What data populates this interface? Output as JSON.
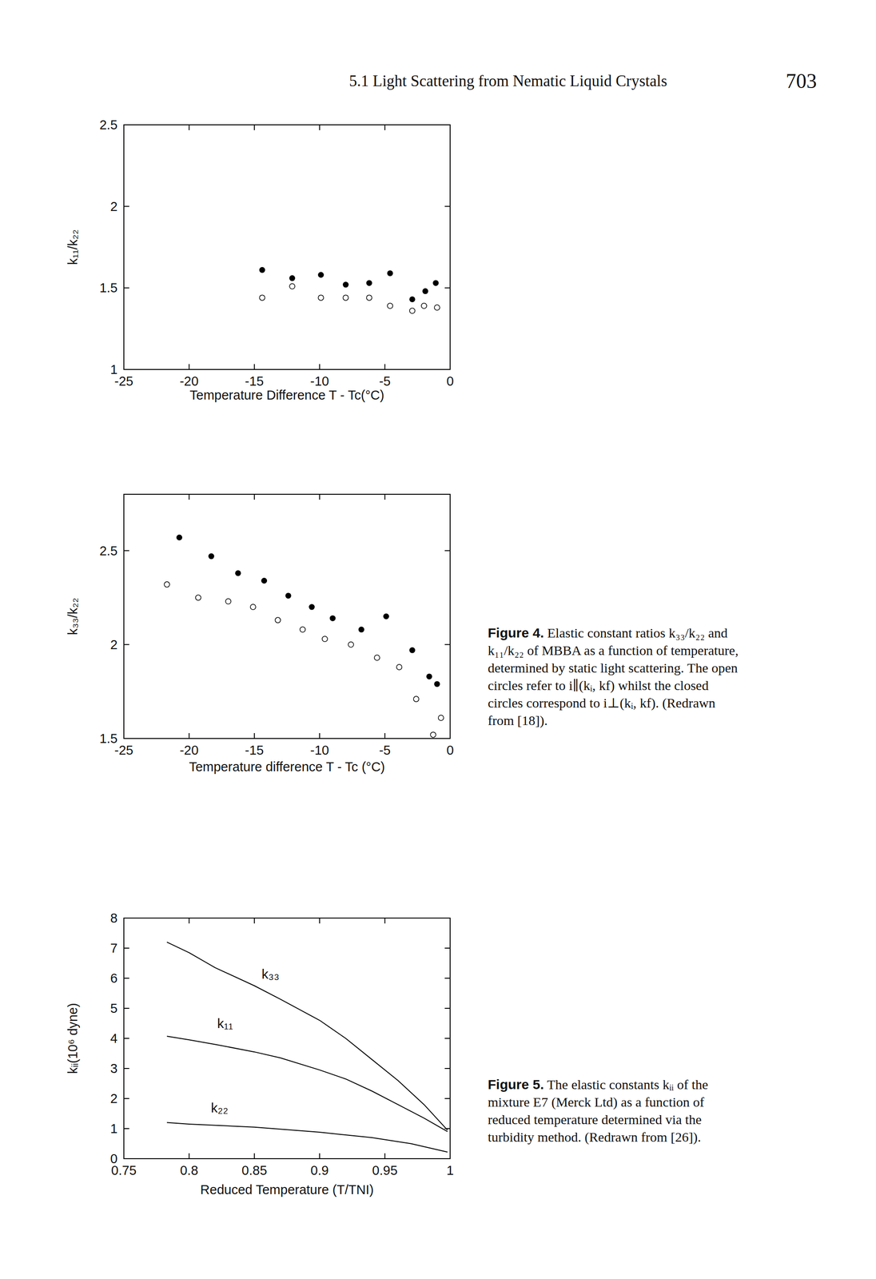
{
  "page": {
    "running_head": "5.1 Light Scattering from Nematic Liquid Crystals",
    "page_number": 703
  },
  "chart_data": [
    {
      "type": "scatter",
      "xlabel": "Temperature Difference T - Tc(°C)",
      "ylabel": "k₁₁/k₂₂",
      "xlim": [
        -25,
        0
      ],
      "ylim": [
        1,
        2.5
      ],
      "xticks": [
        -25,
        -20,
        -15,
        -10,
        -5,
        0
      ],
      "yticks": [
        1,
        1.5,
        2,
        2.5
      ],
      "series": [
        {
          "color": "#000000",
          "marker": "filled-circle",
          "x": [
            -14.4,
            -12.1,
            -9.9,
            -8.0,
            -6.2,
            -4.6,
            -2.9,
            -1.9,
            -1.1
          ],
          "values": [
            1.61,
            1.56,
            1.58,
            1.52,
            1.53,
            1.59,
            1.43,
            1.48,
            1.53
          ]
        },
        {
          "color": "#000000",
          "marker": "open-circle",
          "x": [
            -14.4,
            -12.1,
            -9.9,
            -8.0,
            -6.2,
            -4.6,
            -2.9,
            -2.0,
            -1.0
          ],
          "values": [
            1.44,
            1.51,
            1.44,
            1.44,
            1.44,
            1.39,
            1.36,
            1.39,
            1.38
          ]
        }
      ]
    },
    {
      "type": "scatter",
      "xlabel": "Temperature difference T - Tc (°C)",
      "ylabel": "k₃₃/k₂₂",
      "xlim": [
        -25,
        0
      ],
      "ylim": [
        1.5,
        2.8
      ],
      "xticks": [
        -25,
        -20,
        -15,
        -10,
        -5,
        0
      ],
      "yticks": [
        1.5,
        2,
        2.5
      ],
      "series": [
        {
          "color": "#000000",
          "marker": "filled-circle",
          "x": [
            -20.75,
            -18.3,
            -16.25,
            -14.25,
            -12.4,
            -10.6,
            -9.0,
            -6.8,
            -4.9,
            -2.9,
            -1.6,
            -1.0
          ],
          "values": [
            2.57,
            2.47,
            2.38,
            2.34,
            2.26,
            2.2,
            2.14,
            2.08,
            2.15,
            1.97,
            1.83,
            1.79
          ]
        },
        {
          "color": "#000000",
          "marker": "open-circle",
          "x": [
            -21.7,
            -19.3,
            -17.0,
            -15.1,
            -13.2,
            -11.3,
            -9.6,
            -7.6,
            -5.6,
            -3.9,
            -2.6,
            -0.7,
            -1.3
          ],
          "values": [
            2.32,
            2.25,
            2.23,
            2.2,
            2.13,
            2.08,
            2.03,
            2.0,
            1.93,
            1.88,
            1.71,
            1.61,
            1.52
          ]
        }
      ]
    },
    {
      "type": "line",
      "xlabel": "Reduced Temperature (T/TNI)",
      "ylabel": "kᵢᵢ(10⁶ dyne)",
      "xlim": [
        0.75,
        1
      ],
      "ylim": [
        0,
        8
      ],
      "xticks": [
        0.75,
        0.8,
        0.85,
        0.9,
        0.95,
        1
      ],
      "yticks": [
        0,
        1,
        2,
        3,
        4,
        5,
        6,
        7,
        8
      ],
      "series": [
        {
          "name": "k₃₃",
          "color": "#000000",
          "x": [
            0.783,
            0.8,
            0.82,
            0.85,
            0.87,
            0.9,
            0.92,
            0.94,
            0.96,
            0.98,
            0.998
          ],
          "values": [
            7.2,
            6.85,
            6.35,
            5.75,
            5.3,
            4.6,
            4.0,
            3.3,
            2.6,
            1.8,
            0.95
          ]
        },
        {
          "name": "k₁₁",
          "color": "#000000",
          "x": [
            0.783,
            0.8,
            0.82,
            0.85,
            0.87,
            0.9,
            0.92,
            0.94,
            0.96,
            0.98,
            0.998
          ],
          "values": [
            4.07,
            3.95,
            3.8,
            3.55,
            3.35,
            2.95,
            2.65,
            2.25,
            1.8,
            1.35,
            0.9
          ]
        },
        {
          "name": "k₂₂",
          "color": "#000000",
          "x": [
            0.783,
            0.8,
            0.85,
            0.9,
            0.94,
            0.97,
            0.998
          ],
          "values": [
            1.2,
            1.15,
            1.05,
            0.88,
            0.7,
            0.5,
            0.22
          ]
        }
      ]
    }
  ],
  "captions": [
    {
      "label": "Figure 4.",
      "text": "Elastic constant ratios k₃₃/k₂₂ and k₁₁/k₂₂ of MBBA as a function of temperature, determined by static light scattering. The open circles refer to i∥(kᵢ, kf) whilst the closed circles correspond to i⊥(kᵢ, kf). (Redrawn from [18])."
    },
    {
      "label": "Figure 5.",
      "text": "The elastic constants kᵢᵢ of the mixture E7 (Merck Ltd) as a function of reduced temperature determined via the turbidity method. (Redrawn from [26])."
    }
  ]
}
